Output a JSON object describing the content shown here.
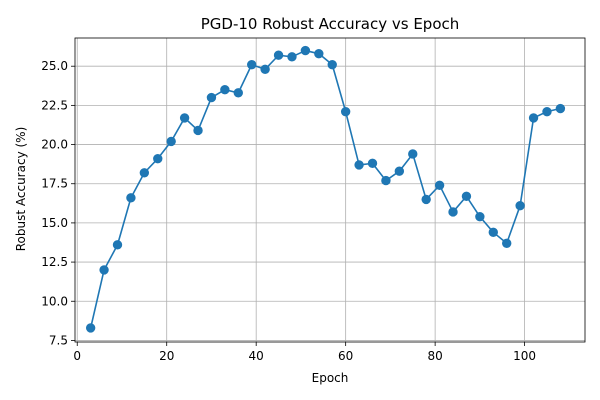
{
  "chart_data": {
    "type": "line",
    "title": "PGD-10 Robust Accuracy vs Epoch",
    "xlabel": "Epoch",
    "ylabel": "Robust Accuracy (%)",
    "xlim": [
      -0.5,
      113.5
    ],
    "ylim": [
      7.4,
      26.8
    ],
    "xticks": [
      0,
      20,
      40,
      60,
      80,
      100
    ],
    "yticks": [
      7.5,
      10.0,
      12.5,
      15.0,
      17.5,
      20.0,
      22.5,
      25.0
    ],
    "grid": true,
    "series": [
      {
        "name": "PGD-10 robust accuracy",
        "color": "#1f77b4",
        "marker": "circle",
        "x": [
          3,
          6,
          9,
          12,
          15,
          18,
          21,
          24,
          27,
          30,
          33,
          36,
          39,
          42,
          45,
          48,
          51,
          54,
          57,
          60,
          63,
          66,
          69,
          72,
          75,
          78,
          81,
          84,
          87,
          90,
          93,
          96,
          99,
          102,
          105,
          108
        ],
        "y": [
          8.3,
          12.0,
          13.6,
          16.6,
          18.2,
          19.1,
          20.2,
          21.7,
          20.9,
          23.0,
          23.5,
          23.3,
          25.1,
          24.8,
          25.7,
          25.6,
          26.0,
          25.8,
          25.1,
          22.1,
          18.7,
          18.8,
          17.7,
          18.3,
          19.4,
          16.5,
          17.4,
          15.7,
          16.7,
          15.4,
          14.4,
          13.7,
          16.1,
          21.7,
          22.1,
          22.3
        ]
      }
    ]
  }
}
